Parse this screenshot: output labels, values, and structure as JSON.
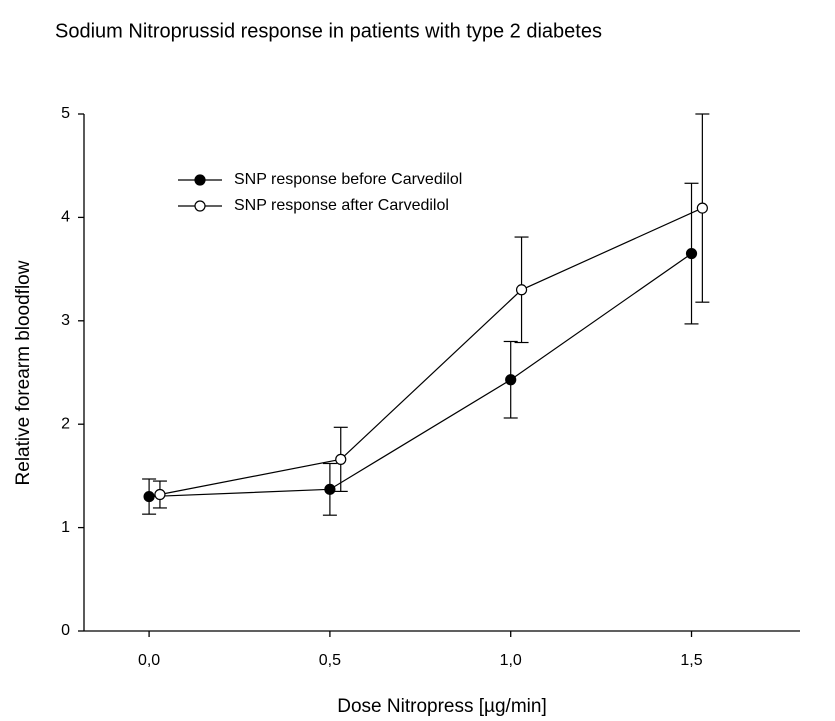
{
  "chart_data": {
    "type": "line",
    "title": "Sodium Nitroprussid response in patients with type 2 diabetes",
    "x_label": "Dose Nitropress [µg/min]",
    "y_label": "Relative forearm bloodflow",
    "xlim": [
      -0.18,
      1.8
    ],
    "ylim": [
      0,
      5
    ],
    "xticks": [
      {
        "value": 0,
        "label": "0,0"
      },
      {
        "value": 0.5,
        "label": "0,5"
      },
      {
        "value": 1.0,
        "label": "1,0"
      },
      {
        "value": 1.5,
        "label": "1,5"
      }
    ],
    "yticks": [
      0,
      1,
      2,
      3,
      4,
      5
    ],
    "legend": "upper left",
    "series": [
      {
        "name": "SNP response before Carvedilol",
        "color": "#000000",
        "marker": "filled",
        "x": [
          0,
          0.5,
          1.0,
          1.5
        ],
        "values": [
          1.3,
          1.37,
          2.43,
          3.65
        ],
        "errors": [
          0.17,
          0.25,
          0.37,
          0.68
        ]
      },
      {
        "name": "SNP response after Carvedilol",
        "color": "#000000",
        "marker": "open",
        "x": [
          0.03,
          0.53,
          1.03,
          1.53
        ],
        "values": [
          1.32,
          1.66,
          3.3,
          4.09
        ],
        "errors": [
          0.13,
          0.31,
          0.51,
          0.91
        ]
      }
    ]
  }
}
